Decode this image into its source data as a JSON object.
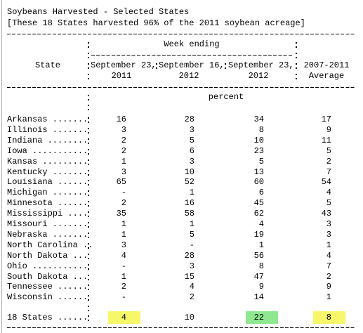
{
  "title": "Soybeans Harvested - Selected States",
  "subtitle": "[These 18 States harvested 96% of the 2011 soybean acreage]",
  "header": {
    "state": "State",
    "week_ending": "Week ending",
    "columns": [
      [
        "September 23,",
        "2011"
      ],
      [
        "September 16,",
        "2012"
      ],
      [
        "September 23,",
        "2012"
      ],
      [
        "2007-2011",
        "Average"
      ]
    ]
  },
  "unit": "percent",
  "rows": [
    [
      "Arkansas .......",
      16,
      28,
      34,
      17
    ],
    [
      "Illinois .......",
      3,
      3,
      8,
      9
    ],
    [
      "Indiana ........",
      2,
      5,
      10,
      11
    ],
    [
      "Iowa ...........",
      2,
      6,
      23,
      5
    ],
    [
      "Kansas .........",
      1,
      3,
      5,
      2
    ],
    [
      "Kentucky .......",
      3,
      10,
      13,
      7
    ],
    [
      "Louisiana ......",
      65,
      52,
      60,
      54
    ],
    [
      "Michigan .......",
      "-",
      1,
      6,
      4
    ],
    [
      "Minnesota ......",
      2,
      16,
      45,
      5
    ],
    [
      "Mississippi ....",
      35,
      58,
      62,
      43
    ],
    [
      "Missouri .......",
      1,
      1,
      4,
      3
    ],
    [
      "Nebraska .......",
      1,
      5,
      19,
      3
    ],
    [
      "North Carolina ..",
      3,
      "-",
      1,
      1
    ],
    [
      "North Dakota ...",
      4,
      28,
      56,
      4
    ],
    [
      "Ohio ...........",
      "-",
      3,
      8,
      7
    ],
    [
      "South Dakota ...",
      1,
      15,
      47,
      2
    ],
    [
      "Tennessee ......",
      2,
      4,
      9,
      9
    ],
    [
      "Wisconsin ......",
      "-",
      2,
      14,
      1
    ]
  ],
  "total": [
    "18 States ......",
    4,
    10,
    22,
    8
  ],
  "highlights": [
    {
      "column": 0,
      "color": "#f7f76a"
    },
    {
      "column": 2,
      "color": "#8fe88f"
    },
    {
      "column": 3,
      "color": "#f7f76a"
    }
  ]
}
